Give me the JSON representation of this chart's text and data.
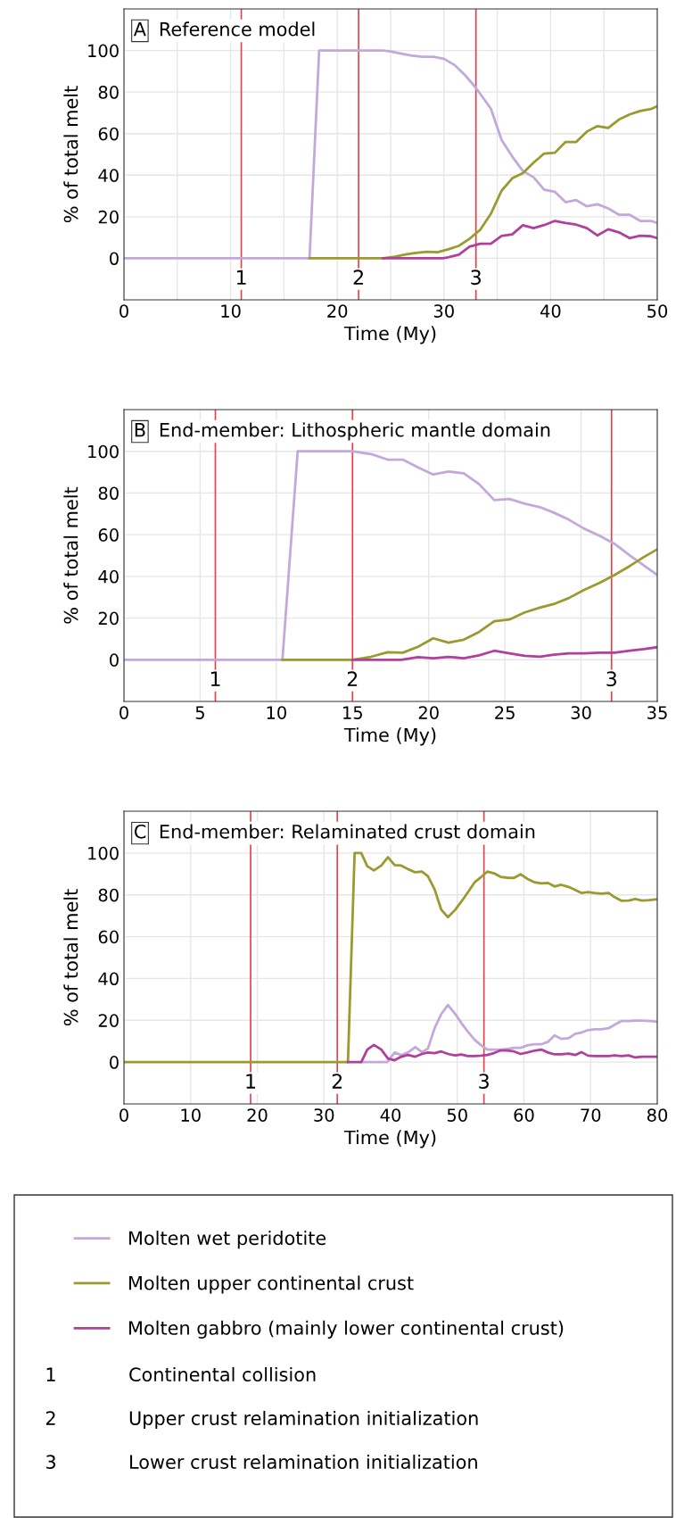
{
  "chart_data": [
    {
      "type": "line",
      "title": "Reference model",
      "annotations": [
        "A",
        {
          "text": "1",
          "x": 11,
          "y": -10
        },
        {
          "text": "2",
          "x": 22,
          "y": -10
        },
        {
          "text": "3",
          "x": 33,
          "y": -10
        }
      ],
      "xlabel": "Time (My)",
      "ylabel": "% of total melt",
      "xlim": [
        0,
        50
      ],
      "ylim": [
        -20,
        120
      ],
      "xticks": [
        0,
        {
          "value": 5,
          "label": null
        },
        10,
        {
          "value": 15,
          "label": null
        },
        20,
        {
          "value": 25,
          "label": null
        },
        30,
        {
          "value": 35,
          "label": null
        },
        40,
        {
          "value": 45,
          "label": null
        },
        50
      ],
      "yticks": [
        0,
        20,
        40,
        60,
        80,
        100
      ],
      "grid": true,
      "ref_lines": [
        {
          "axis": "x",
          "value": 11,
          "color": "#e8404a"
        },
        {
          "axis": "x",
          "value": 22,
          "color": "#e8404a"
        },
        {
          "axis": "x",
          "value": 33,
          "color": "#e8404a"
        }
      ],
      "series": [
        {
          "color": "#c3a9d9",
          "x": [
            0,
            17.4,
            18.3,
            24.3,
            25,
            26,
            27,
            28,
            29,
            30,
            31,
            32,
            33,
            34.4,
            35.4,
            36.4,
            37.4,
            38.4,
            39.4,
            40.4,
            41.4,
            42.4,
            43.4,
            44.4,
            45.4,
            46.4,
            47.4,
            48.4,
            49.4,
            50
          ],
          "values": [
            0,
            0,
            100,
            100,
            99.5,
            98.5,
            97.5,
            97,
            97,
            96,
            93,
            88,
            82,
            72,
            57,
            49,
            42,
            39,
            33,
            32,
            27,
            28,
            25,
            26,
            24,
            21,
            21,
            18,
            18,
            17
          ]
        },
        {
          "color": "#9a9a2e",
          "x": [
            17.4,
            24.3,
            25.4,
            26.4,
            27.4,
            28.4,
            29.4,
            30.4,
            31.4,
            32.4,
            33.4,
            34.4,
            35.4,
            36.4,
            37.4,
            38.4,
            39.4,
            40.4,
            41.4,
            42.4,
            43.4,
            44.4,
            45.4,
            46.4,
            47.4,
            48.4,
            49.4,
            50
          ],
          "values": [
            0,
            0,
            0.8,
            1.8,
            2.6,
            3.1,
            2.9,
            4.3,
            6,
            9.4,
            13.7,
            21.4,
            32.5,
            38.5,
            41,
            46,
            50.4,
            50.8,
            56,
            56,
            61,
            63.6,
            62.7,
            66.7,
            69.2,
            70.9,
            71.8,
            73.2
          ]
        },
        {
          "color": "#b0409a",
          "x": [
            24.3,
            29.9,
            30.4,
            31.4,
            32.4,
            33.4,
            34.4,
            35.4,
            36.4,
            37.4,
            38.4,
            39.4,
            40.4,
            41.4,
            42.4,
            43.4,
            44.4,
            45.4,
            46.4,
            47.4,
            48.4,
            49.4,
            50
          ],
          "values": [
            0,
            0,
            0.5,
            1.7,
            5.6,
            7,
            7,
            10.8,
            11.5,
            15.9,
            14.5,
            16,
            18,
            17,
            16.2,
            14.5,
            11,
            14,
            12.5,
            9.7,
            10.9,
            10.6,
            9.7
          ]
        }
      ]
    },
    {
      "type": "line",
      "title": "End-member: Lithospheric mantle domain",
      "annotations": [
        "B",
        {
          "text": "1",
          "x": 6,
          "y": -10
        },
        {
          "text": "2",
          "x": 15,
          "y": -10
        },
        {
          "text": "3",
          "x": 32,
          "y": -10
        }
      ],
      "xlabel": "Time (My)",
      "ylabel": "% of total melt",
      "xlim": [
        0,
        35
      ],
      "ylim": [
        -20,
        120
      ],
      "xticks": [
        0,
        5,
        10,
        15,
        20,
        25,
        30,
        35
      ],
      "yticks": [
        0,
        20,
        40,
        60,
        80,
        100
      ],
      "grid": true,
      "ref_lines": [
        {
          "axis": "x",
          "value": 6,
          "color": "#e8404a"
        },
        {
          "axis": "x",
          "value": 15,
          "color": "#e8404a"
        },
        {
          "axis": "x",
          "value": 32,
          "color": "#e8404a"
        }
      ],
      "series": [
        {
          "color": "#c3a9d9",
          "x": [
            0,
            10.4,
            11.4,
            15,
            16.3,
            17.3,
            18.3,
            19.3,
            20.3,
            21.3,
            22.3,
            23.3,
            24.3,
            25.3,
            26.3,
            27.3,
            28.2,
            29.2,
            30.2,
            31.2,
            32.2,
            33.2,
            34.1,
            35
          ],
          "values": [
            0,
            0,
            100,
            100,
            98.5,
            96,
            96,
            92.3,
            88.9,
            90.3,
            89.4,
            84.3,
            76.6,
            77.1,
            74.9,
            73.2,
            70.6,
            67.2,
            62.9,
            59.5,
            55.6,
            50.1,
            45.3,
            40.7
          ]
        },
        {
          "color": "#9a9a2e",
          "x": [
            10.4,
            15,
            16.2,
            17.3,
            18.3,
            19.3,
            20.3,
            21.3,
            22.3,
            23.3,
            24.3,
            25.3,
            26.3,
            27.3,
            28.2,
            29.2,
            30.2,
            31.2,
            32.2,
            33.2,
            34.1,
            35
          ],
          "values": [
            0,
            0,
            1.4,
            3.6,
            3.4,
            6.2,
            10.3,
            8.2,
            9.6,
            13.3,
            18.5,
            19.3,
            22.7,
            25,
            26.7,
            29.6,
            33.5,
            36.8,
            40.7,
            45,
            49.2,
            53
          ]
        },
        {
          "color": "#b0409a",
          "x": [
            15,
            18.2,
            19.3,
            20.3,
            21.3,
            22.3,
            23.3,
            24.3,
            25.3,
            26.3,
            27.3,
            28.2,
            29.2,
            30.2,
            31.2,
            32.2,
            33.2,
            34.1,
            35
          ],
          "values": [
            0,
            0,
            1.2,
            0.7,
            1.4,
            0.7,
            2.1,
            4.3,
            3.1,
            1.9,
            1.5,
            2.4,
            3.1,
            3.1,
            3.4,
            3.4,
            4.4,
            5.1,
            6
          ]
        }
      ]
    },
    {
      "type": "line",
      "title": "End-member: Relaminated crust domain",
      "annotations": [
        "C",
        {
          "text": "1",
          "x": 19,
          "y": -10
        },
        {
          "text": "2",
          "x": 32,
          "y": -10
        },
        {
          "text": "3",
          "x": 54,
          "y": -10
        },
        "Continental collision",
        "Upper crust relamination initialization",
        "Lower crust relamination initialization"
      ],
      "xlabel": "Time (My)",
      "ylabel": "% of total melt",
      "xlim": [
        0,
        80
      ],
      "ylim": [
        -20,
        120
      ],
      "xticks": [
        0,
        10,
        20,
        30,
        40,
        50,
        60,
        70,
        80
      ],
      "yticks": [
        0,
        20,
        40,
        60,
        80,
        100
      ],
      "grid": true,
      "legend": "bottom",
      "ref_lines": [
        {
          "axis": "x",
          "value": 19,
          "color": "#e8404a"
        },
        {
          "axis": "x",
          "value": 32,
          "color": "#e8404a"
        },
        {
          "axis": "x",
          "value": 54,
          "color": "#e8404a"
        }
      ],
      "series": [
        {
          "name": "Molten wet peridotite",
          "color": "#c3a9d9",
          "x": [
            35.6,
            39.5,
            40.6,
            41.6,
            42.6,
            43.7,
            44.7,
            45.6,
            46.6,
            47.6,
            48.6,
            49.7,
            50.6,
            51.6,
            52.6,
            53.6,
            54.5,
            55.5,
            56.5,
            57.5,
            58.5,
            59.5,
            60.5,
            61.6,
            62.6,
            63.6,
            64.6,
            65.6,
            66.7,
            67.7,
            68.6,
            69.6,
            70.6,
            71.6,
            72.7,
            73.6,
            74.6,
            75.7,
            76.7,
            77.7,
            78.8,
            80
          ],
          "values": [
            0,
            0,
            4.6,
            3.4,
            4.6,
            7.2,
            4.8,
            6.5,
            16.2,
            23,
            27.3,
            23,
            18.7,
            14.5,
            10.7,
            8,
            6,
            6,
            6,
            6.3,
            6.8,
            6.8,
            8,
            8.5,
            8.5,
            9.7,
            12.8,
            11.1,
            11.4,
            13.6,
            14.1,
            15.3,
            15.7,
            15.7,
            16.2,
            17.9,
            19.6,
            19.6,
            19.9,
            19.9,
            19.6,
            19.3
          ]
        },
        {
          "name": "Molten upper continental crust",
          "color": "#9a9a2e",
          "x": [
            0,
            33.6,
            34.6,
            35.6,
            36.5,
            37.5,
            38.6,
            39.6,
            40.6,
            41.6,
            42.6,
            43.7,
            44.7,
            45.6,
            46.6,
            47.6,
            48.6,
            49.7,
            50.6,
            51.6,
            52.6,
            53.6,
            54.5,
            55.5,
            56.5,
            57.5,
            58.5,
            59.5,
            60.5,
            61.6,
            62.6,
            63.6,
            64.6,
            65.6,
            66.7,
            67.7,
            68.6,
            69.6,
            70.6,
            71.6,
            72.7,
            73.6,
            74.6,
            75.7,
            76.7,
            77.7,
            78.8,
            80
          ],
          "values": [
            0,
            0,
            100,
            100,
            93.7,
            91.7,
            94,
            98,
            94.2,
            94,
            92.3,
            90.8,
            91.1,
            88.9,
            82.6,
            72.9,
            69.3,
            72.9,
            76.7,
            81.3,
            86,
            88.6,
            91.1,
            90.3,
            88.6,
            88.2,
            88.1,
            89.8,
            87.7,
            86,
            85.5,
            85.7,
            84,
            84.8,
            83.8,
            82.3,
            80.9,
            81.3,
            80.9,
            80.6,
            80.9,
            78.9,
            77.2,
            77.3,
            78,
            77.3,
            77.5,
            77.9
          ]
        },
        {
          "name": "Molten gabbro (mainly lower continental crust)",
          "color": "#b0409a",
          "x": [
            33.6,
            35.6,
            36.5,
            37.5,
            38.6,
            39.6,
            40.6,
            41.6,
            42.6,
            43.7,
            44.7,
            45.6,
            46.6,
            47.6,
            48.6,
            49.7,
            50.6,
            51.6,
            52.6,
            53.6,
            54.5,
            55.5,
            56.5,
            57.5,
            58.5,
            59.5,
            60.5,
            61.6,
            62.6,
            63.6,
            64.6,
            65.6,
            66.7,
            67.7,
            68.6,
            69.6,
            70.6,
            71.6,
            72.7,
            73.6,
            74.6,
            75.7,
            76.7,
            77.7,
            78.8,
            80
          ],
          "values": [
            0,
            0,
            6,
            8.2,
            6,
            1.7,
            0.9,
            2.6,
            3.4,
            2.6,
            3.9,
            4.6,
            4.3,
            5.1,
            3.9,
            3.2,
            3.6,
            2.9,
            2.9,
            3.1,
            3.4,
            4.3,
            5.6,
            5.6,
            5.1,
            3.9,
            4.6,
            5.5,
            6,
            4.6,
            3.7,
            3.7,
            4.1,
            3.4,
            4.8,
            3.1,
            2.9,
            2.9,
            2.9,
            3.2,
            2.9,
            3.2,
            2.2,
            2.6,
            2.6,
            2.6
          ]
        }
      ]
    }
  ]
}
